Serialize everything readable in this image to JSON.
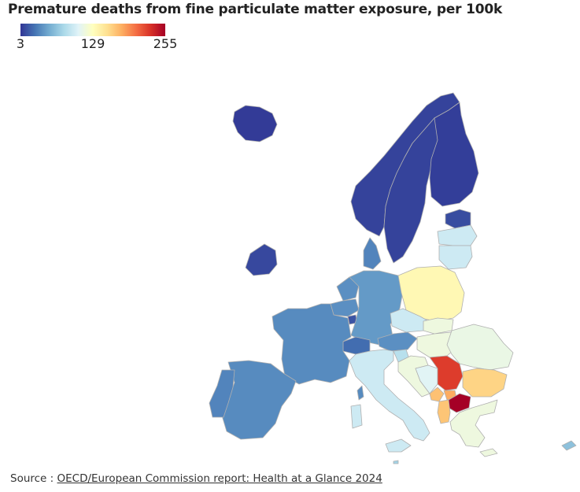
{
  "title": "Premature deaths from fine particulate matter exposure, per 100k",
  "legend": {
    "min_label": "3",
    "mid_label": "129",
    "max_label": "255",
    "min": 3,
    "mid": 129,
    "max": 255,
    "colors": [
      "#313695",
      "#4575b4",
      "#74add1",
      "#abd9e9",
      "#e0f3f8",
      "#ffffbf",
      "#fee090",
      "#fdae61",
      "#f46d43",
      "#d73027",
      "#a50026"
    ]
  },
  "source": {
    "prefix": "Source : ",
    "link_text": "OECD/European Commission report: Health at a Glance 2024"
  },
  "chart_data": {
    "type": "choropleth",
    "scale": {
      "min": 3,
      "max": 255
    },
    "regions": [
      {
        "name": "Iceland",
        "value": 5
      },
      {
        "name": "Norway",
        "value": 8
      },
      {
        "name": "Sweden",
        "value": 8
      },
      {
        "name": "Finland",
        "value": 6
      },
      {
        "name": "Estonia",
        "value": 12
      },
      {
        "name": "Latvia",
        "value": 95
      },
      {
        "name": "Lithuania",
        "value": 95
      },
      {
        "name": "Ireland",
        "value": 10
      },
      {
        "name": "Denmark",
        "value": 35
      },
      {
        "name": "Netherlands",
        "value": 40
      },
      {
        "name": "Belgium",
        "value": 40
      },
      {
        "name": "Luxembourg",
        "value": 15
      },
      {
        "name": "Germany",
        "value": 45
      },
      {
        "name": "Poland",
        "value": 135
      },
      {
        "name": "Czechia",
        "value": 95
      },
      {
        "name": "Slovakia",
        "value": 115
      },
      {
        "name": "Hungary",
        "value": 115
      },
      {
        "name": "Austria",
        "value": 40
      },
      {
        "name": "Switzerland",
        "value": 25
      },
      {
        "name": "France",
        "value": 38
      },
      {
        "name": "Spain",
        "value": 38
      },
      {
        "name": "Portugal",
        "value": 35
      },
      {
        "name": "Italy",
        "value": 95
      },
      {
        "name": "Slovenia",
        "value": 85
      },
      {
        "name": "Croatia",
        "value": 115
      },
      {
        "name": "Bosnia and Herzegovina",
        "value": 105
      },
      {
        "name": "Romania",
        "value": 112
      },
      {
        "name": "Serbia",
        "value": 225
      },
      {
        "name": "Montenegro",
        "value": 170
      },
      {
        "name": "Kosovo",
        "value": 180
      },
      {
        "name": "North Macedonia",
        "value": 255
      },
      {
        "name": "Albania",
        "value": 168
      },
      {
        "name": "Bulgaria",
        "value": 160
      },
      {
        "name": "Greece",
        "value": 115
      },
      {
        "name": "Malta",
        "value": 75
      },
      {
        "name": "Cyprus",
        "value": 65
      }
    ]
  }
}
